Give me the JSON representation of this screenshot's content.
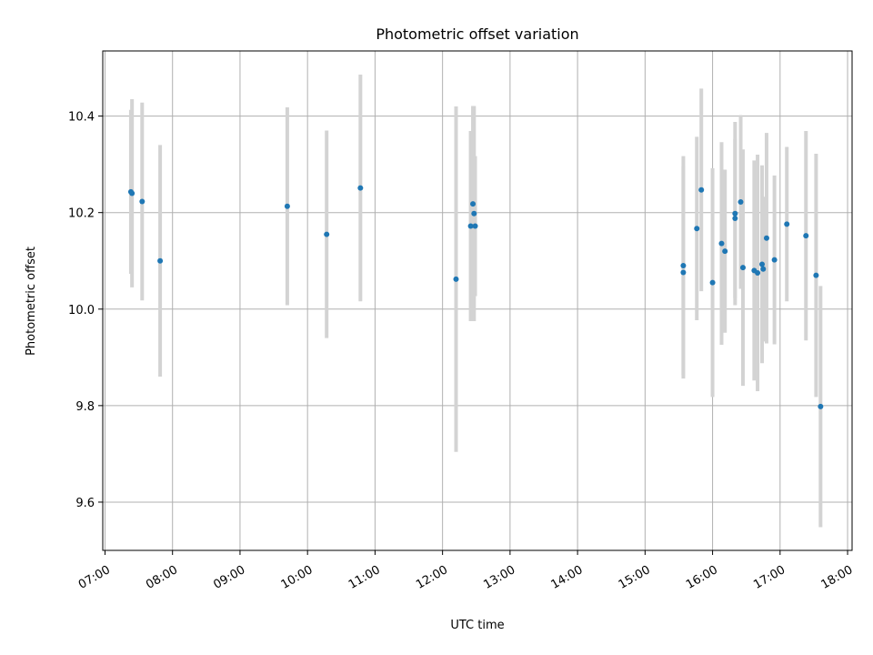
{
  "chart_data": {
    "type": "scatter",
    "title": "Photometric offset variation",
    "xlabel": "UTC time",
    "ylabel": "Photometric offset",
    "xlim": [
      "06:58",
      "18:04"
    ],
    "ylim": [
      9.5,
      10.535
    ],
    "x_ticks": [
      "07:00",
      "08:00",
      "09:00",
      "10:00",
      "11:00",
      "12:00",
      "13:00",
      "14:00",
      "15:00",
      "16:00",
      "17:00",
      "18:00"
    ],
    "y_ticks": [
      9.6,
      9.8,
      10.0,
      10.2,
      10.4
    ],
    "y_tick_labels": [
      "9.6",
      "9.8",
      "10.0",
      "10.2",
      "10.4"
    ],
    "grid": true,
    "point_color": "#1f77b4",
    "errorbar_color": "#d3d3d3",
    "points": [
      {
        "x": "07:23",
        "y": 10.243,
        "err": 0.17
      },
      {
        "x": "07:24",
        "y": 10.24,
        "err": 0.195
      },
      {
        "x": "07:33",
        "y": 10.223,
        "err": 0.205
      },
      {
        "x": "07:49",
        "y": 10.1,
        "err": 0.24
      },
      {
        "x": "09:42",
        "y": 10.213,
        "err": 0.205
      },
      {
        "x": "10:17",
        "y": 10.155,
        "err": 0.215
      },
      {
        "x": "10:47",
        "y": 10.251,
        "err": 0.235
      },
      {
        "x": "12:12",
        "y": 10.062,
        "err": 0.358
      },
      {
        "x": "12:25",
        "y": 10.172,
        "err": 0.197
      },
      {
        "x": "12:27",
        "y": 10.218,
        "err": 0.203
      },
      {
        "x": "12:28",
        "y": 10.198,
        "err": 0.223
      },
      {
        "x": "12:29",
        "y": 10.172,
        "err": 0.145
      },
      {
        "x": "15:34",
        "y": 10.09,
        "err": 0.227
      },
      {
        "x": "15:34",
        "y": 10.076,
        "err": 0.22
      },
      {
        "x": "15:46",
        "y": 10.167,
        "err": 0.19
      },
      {
        "x": "15:50",
        "y": 10.247,
        "err": 0.21
      },
      {
        "x": "16:00",
        "y": 10.055,
        "err": 0.237
      },
      {
        "x": "16:08",
        "y": 10.136,
        "err": 0.21
      },
      {
        "x": "16:11",
        "y": 10.12,
        "err": 0.169
      },
      {
        "x": "16:20",
        "y": 10.198,
        "err": 0.19
      },
      {
        "x": "16:20",
        "y": 10.188,
        "err": 0.165
      },
      {
        "x": "16:25",
        "y": 10.222,
        "err": 0.18
      },
      {
        "x": "16:27",
        "y": 10.086,
        "err": 0.245
      },
      {
        "x": "16:37",
        "y": 10.08,
        "err": 0.228
      },
      {
        "x": "16:40",
        "y": 10.075,
        "err": 0.245
      },
      {
        "x": "16:44",
        "y": 10.093,
        "err": 0.205
      },
      {
        "x": "16:45",
        "y": 10.083,
        "err": 0.15
      },
      {
        "x": "16:48",
        "y": 10.147,
        "err": 0.218
      },
      {
        "x": "16:55",
        "y": 10.102,
        "err": 0.175
      },
      {
        "x": "17:06",
        "y": 10.176,
        "err": 0.16
      },
      {
        "x": "17:23",
        "y": 10.152,
        "err": 0.217
      },
      {
        "x": "17:32",
        "y": 10.07,
        "err": 0.252
      },
      {
        "x": "17:36",
        "y": 9.798,
        "err": 0.25
      }
    ]
  }
}
